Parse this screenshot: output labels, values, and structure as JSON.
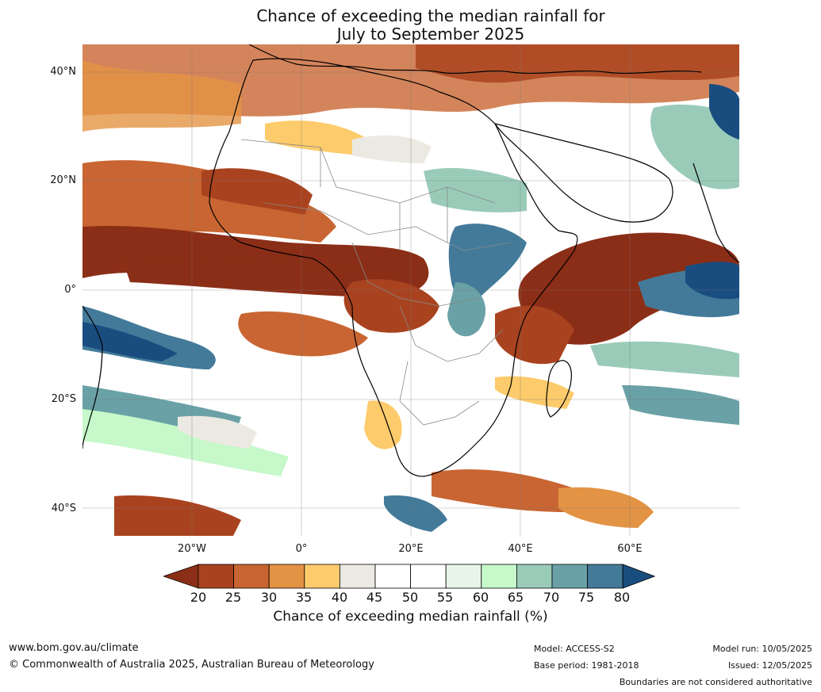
{
  "title": {
    "line1": "Chance of exceeding the median rainfall for",
    "line2": "July to September 2025"
  },
  "map": {
    "lat_labels": [
      "40°N",
      "20°N",
      "0°",
      "20°S",
      "40°S"
    ],
    "lon_labels": [
      "20°W",
      "0°",
      "20°E",
      "40°E",
      "60°E"
    ],
    "extent": {
      "lon_min": -40,
      "lon_max": 80,
      "lat_min": -45,
      "lat_max": 45
    }
  },
  "colorbar": {
    "ticks": [
      "20",
      "25",
      "30",
      "35",
      "40",
      "45",
      "50",
      "55",
      "60",
      "65",
      "70",
      "75",
      "80"
    ],
    "colors": [
      "#8b2e17",
      "#a9431f",
      "#c96532",
      "#e39344",
      "#fdcb6b",
      "#ece9e2",
      "#ffffff",
      "#ffffff",
      "#e6f5e7",
      "#c6f8c9",
      "#9acbb9",
      "#6aa1a6",
      "#437a99",
      "#1a4d7f"
    ],
    "label": "Chance of exceeding median rainfall (%)"
  },
  "footer": {
    "url": "www.bom.gov.au/climate",
    "copyright": "© Commonwealth of Australia 2025, Australian Bureau of Meteorology",
    "model": "Model: ACCESS-S2",
    "base_period": "Base period: 1981-2018",
    "model_run": "Model run: 10/05/2025",
    "issued": "Issued: 12/05/2025",
    "disclaimer": "Boundaries are not considered authoritative"
  }
}
